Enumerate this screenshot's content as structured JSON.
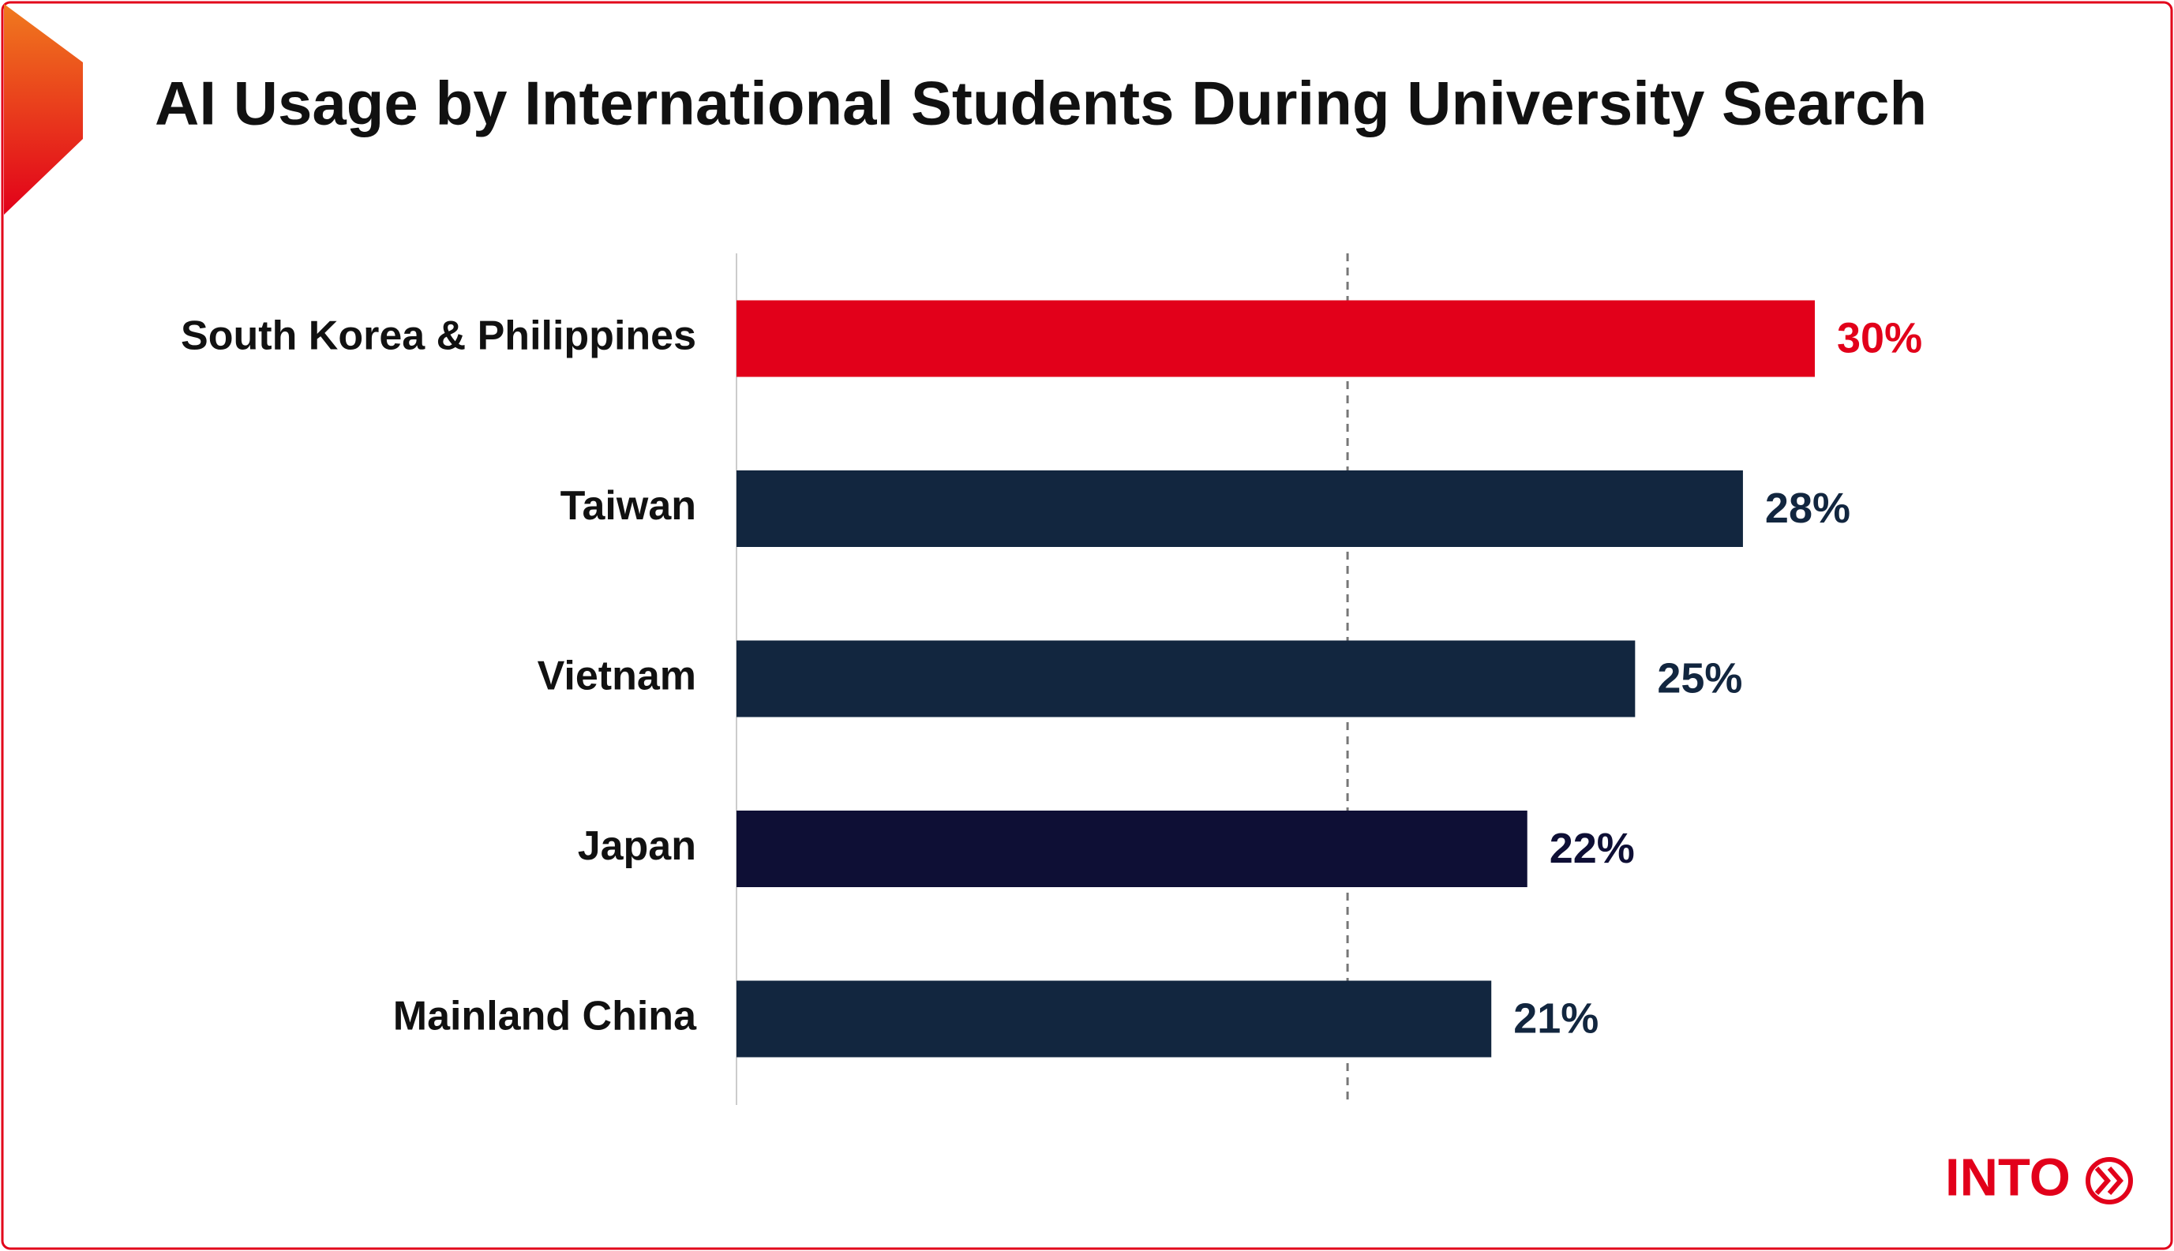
{
  "chart_data": {
    "type": "bar",
    "orientation": "horizontal",
    "title": "AI Usage by International Students During University Search",
    "categories": [
      "South Korea & Philippines",
      "Taiwan",
      "Vietnam",
      "Japan",
      "Mainland China"
    ],
    "values": [
      30,
      28,
      25,
      22,
      21
    ],
    "value_labels": [
      "30%",
      "28%",
      "25%",
      "22%",
      "21%"
    ],
    "colors": [
      "#e2001a",
      "#12263f",
      "#12263f",
      "#0e0f35",
      "#12263f"
    ],
    "xlim": [
      0,
      30
    ],
    "reference_line": 17,
    "logo": "INTO"
  }
}
